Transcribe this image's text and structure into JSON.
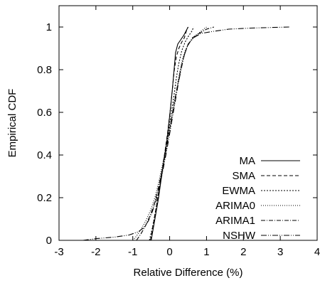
{
  "chart_data": {
    "type": "line",
    "xlabel": "Relative Difference (%)",
    "ylabel": "Empirical CDF",
    "xlim": [
      -3,
      4
    ],
    "ylim": [
      0,
      1.1
    ],
    "xticks": [
      "-3",
      "-2",
      "-1",
      "0",
      "1",
      "2",
      "3",
      "4"
    ],
    "yticks": [
      "0",
      "0.2",
      "0.4",
      "0.6",
      "0.8",
      "1"
    ],
    "grid": false,
    "legend_position": "bottom-right",
    "series": [
      {
        "name": "MA",
        "dash": "",
        "points": [
          [
            -0.5,
            0
          ],
          [
            -0.45,
            0.05
          ],
          [
            -0.38,
            0.12
          ],
          [
            -0.3,
            0.2
          ],
          [
            -0.22,
            0.3
          ],
          [
            -0.15,
            0.38
          ],
          [
            -0.08,
            0.46
          ],
          [
            -0.02,
            0.55
          ],
          [
            0.03,
            0.63
          ],
          [
            0.08,
            0.72
          ],
          [
            0.12,
            0.8
          ],
          [
            0.16,
            0.88
          ],
          [
            0.22,
            0.92
          ],
          [
            0.3,
            0.94
          ],
          [
            0.38,
            0.96
          ],
          [
            0.44,
            0.98
          ],
          [
            0.5,
            1.0
          ]
        ]
      },
      {
        "name": "SMA",
        "dash": "5,3",
        "points": [
          [
            -0.52,
            0
          ],
          [
            -0.46,
            0.06
          ],
          [
            -0.38,
            0.14
          ],
          [
            -0.3,
            0.22
          ],
          [
            -0.22,
            0.31
          ],
          [
            -0.14,
            0.4
          ],
          [
            -0.06,
            0.5
          ],
          [
            0.01,
            0.6
          ],
          [
            0.07,
            0.7
          ],
          [
            0.12,
            0.79
          ],
          [
            0.18,
            0.86
          ],
          [
            0.25,
            0.9
          ],
          [
            0.33,
            0.93
          ],
          [
            0.4,
            0.95
          ],
          [
            0.45,
            0.98
          ],
          [
            0.5,
            1.0
          ]
        ]
      },
      {
        "name": "EWMA",
        "dash": "2,2",
        "points": [
          [
            -0.55,
            0
          ],
          [
            -0.48,
            0.05
          ],
          [
            -0.4,
            0.12
          ],
          [
            -0.32,
            0.2
          ],
          [
            -0.24,
            0.29
          ],
          [
            -0.15,
            0.38
          ],
          [
            -0.06,
            0.48
          ],
          [
            0.03,
            0.58
          ],
          [
            0.11,
            0.67
          ],
          [
            0.18,
            0.76
          ],
          [
            0.25,
            0.83
          ],
          [
            0.33,
            0.89
          ],
          [
            0.42,
            0.93
          ],
          [
            0.52,
            0.96
          ],
          [
            0.6,
            0.98
          ],
          [
            0.65,
            1.0
          ]
        ]
      },
      {
        "name": "ARIMA0",
        "dash": "1,2",
        "points": [
          [
            -1.0,
            0
          ],
          [
            -0.9,
            0.02
          ],
          [
            -0.78,
            0.05
          ],
          [
            -0.65,
            0.09
          ],
          [
            -0.52,
            0.14
          ],
          [
            -0.4,
            0.2
          ],
          [
            -0.3,
            0.27
          ],
          [
            -0.2,
            0.35
          ],
          [
            -0.1,
            0.44
          ],
          [
            0.0,
            0.52
          ],
          [
            0.08,
            0.6
          ],
          [
            0.16,
            0.68
          ],
          [
            0.24,
            0.76
          ],
          [
            0.32,
            0.83
          ],
          [
            0.42,
            0.89
          ],
          [
            0.55,
            0.93
          ],
          [
            0.7,
            0.96
          ],
          [
            0.85,
            0.98
          ],
          [
            1.0,
            1.0
          ]
        ]
      },
      {
        "name": "ARIMA1",
        "dash": "6,2,1,2",
        "points": [
          [
            -0.9,
            0
          ],
          [
            -0.78,
            0.03
          ],
          [
            -0.65,
            0.07
          ],
          [
            -0.52,
            0.12
          ],
          [
            -0.4,
            0.18
          ],
          [
            -0.3,
            0.25
          ],
          [
            -0.2,
            0.33
          ],
          [
            -0.1,
            0.42
          ],
          [
            -0.02,
            0.5
          ],
          [
            0.06,
            0.58
          ],
          [
            0.14,
            0.66
          ],
          [
            0.22,
            0.73
          ],
          [
            0.3,
            0.8
          ],
          [
            0.38,
            0.86
          ],
          [
            0.48,
            0.91
          ],
          [
            0.62,
            0.95
          ],
          [
            0.8,
            0.97
          ],
          [
            1.0,
            0.99
          ],
          [
            1.2,
            1.0
          ]
        ]
      },
      {
        "name": "NSHW",
        "dash": "8,2,1,2,1,2",
        "points": [
          [
            -2.35,
            0
          ],
          [
            -2.0,
            0.008
          ],
          [
            -1.5,
            0.015
          ],
          [
            -1.1,
            0.025
          ],
          [
            -0.85,
            0.04
          ],
          [
            -0.7,
            0.06
          ],
          [
            -0.58,
            0.09
          ],
          [
            -0.48,
            0.13
          ],
          [
            -0.38,
            0.18
          ],
          [
            -0.28,
            0.25
          ],
          [
            -0.18,
            0.33
          ],
          [
            -0.08,
            0.42
          ],
          [
            0.0,
            0.5
          ],
          [
            0.08,
            0.58
          ],
          [
            0.16,
            0.66
          ],
          [
            0.24,
            0.74
          ],
          [
            0.32,
            0.81
          ],
          [
            0.4,
            0.87
          ],
          [
            0.5,
            0.92
          ],
          [
            0.65,
            0.95
          ],
          [
            0.85,
            0.97
          ],
          [
            1.2,
            0.98
          ],
          [
            1.6,
            0.99
          ],
          [
            2.2,
            0.995
          ],
          [
            2.8,
            0.998
          ],
          [
            3.25,
            1.0
          ]
        ]
      }
    ]
  }
}
